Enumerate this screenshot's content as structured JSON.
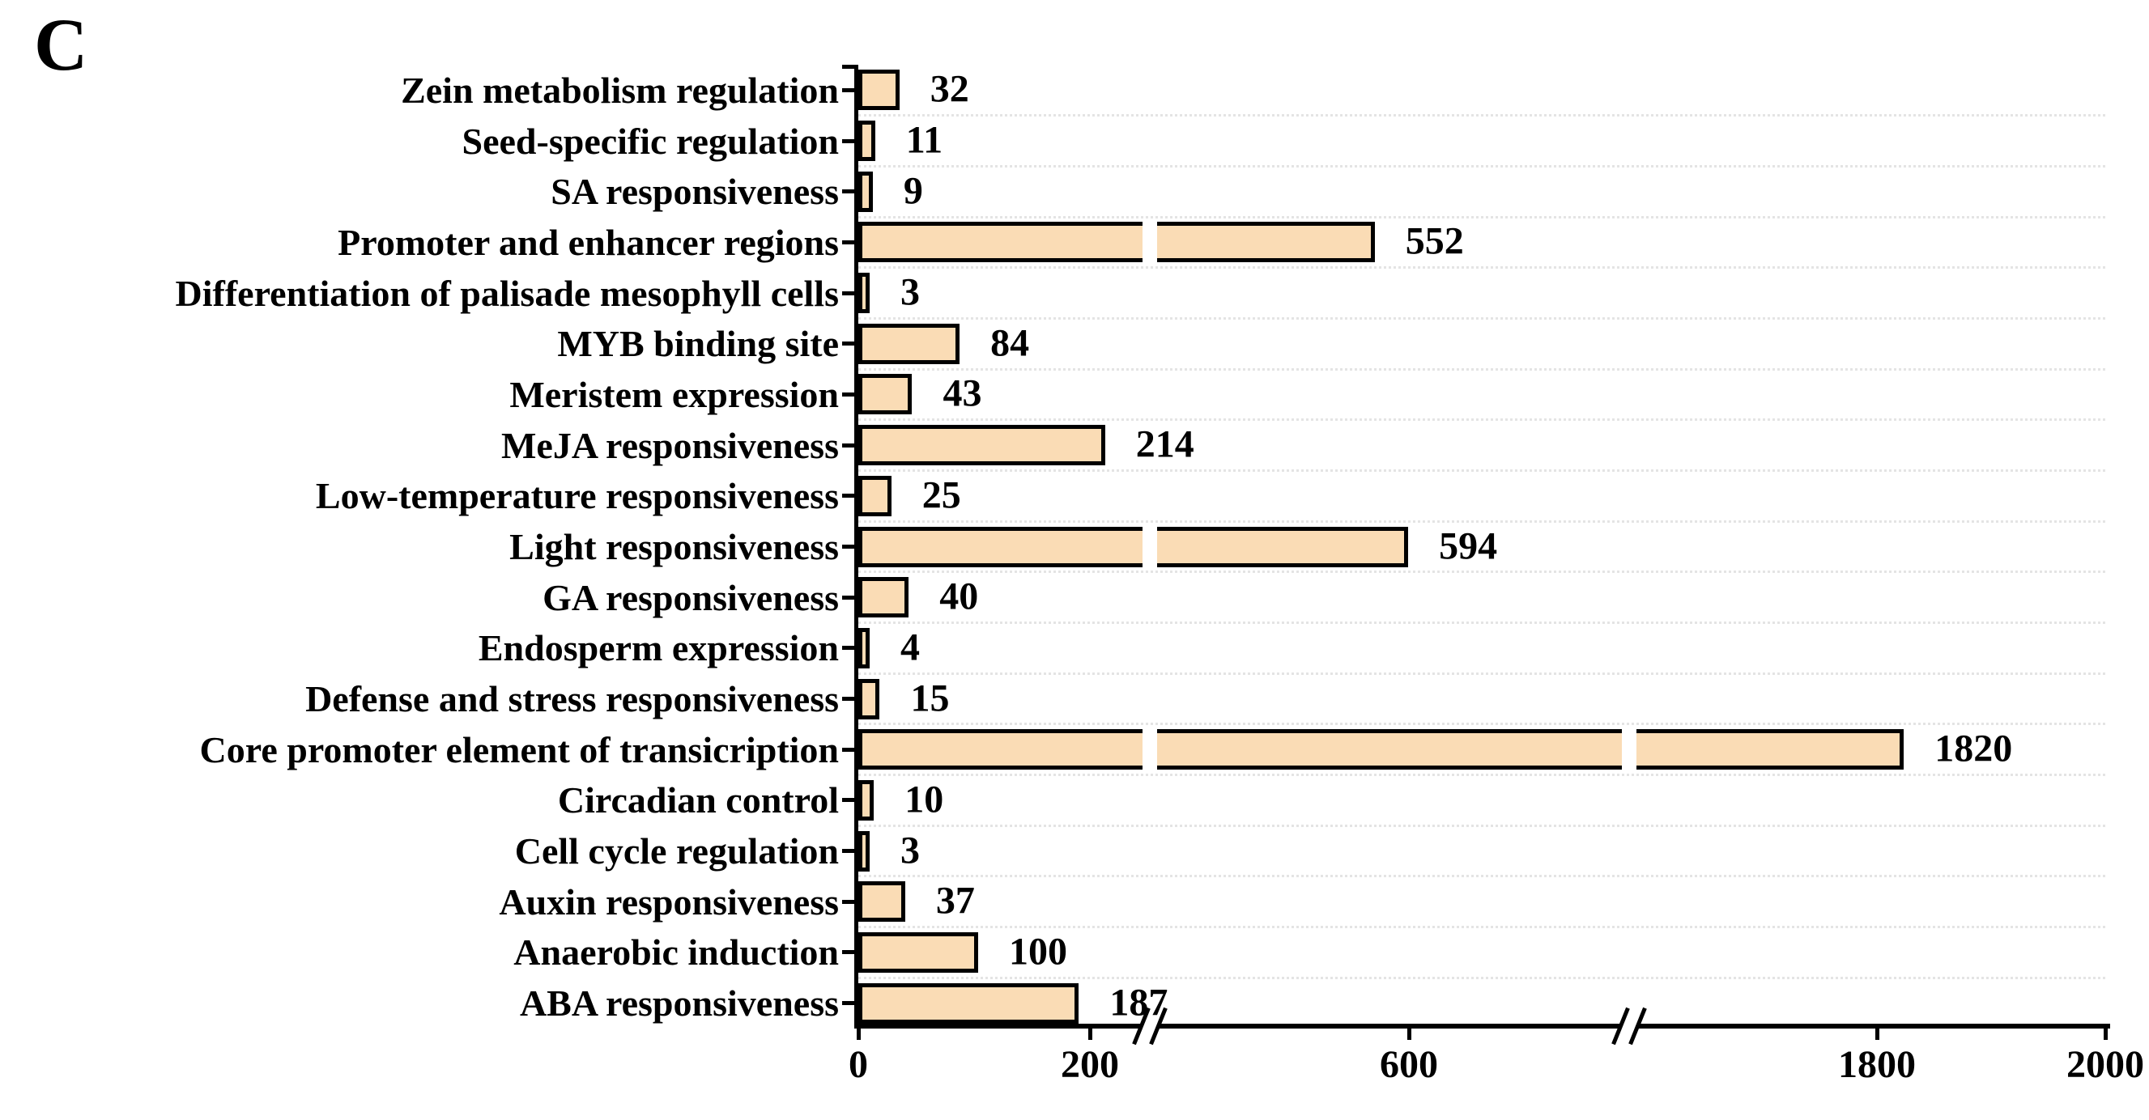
{
  "panel_label": "C",
  "chart_data": {
    "type": "bar",
    "orientation": "horizontal",
    "title": "",
    "xlabel": "",
    "ylabel": "",
    "categories": [
      "Zein metabolism regulation",
      "Seed-specific regulation",
      "SA responsiveness",
      "Promoter and enhancer regions",
      "Differentiation of palisade mesophyll cells",
      "MYB binding site",
      "Meristem expression",
      "MeJA responsiveness",
      "Low-temperature responsiveness",
      "Light responsiveness",
      "GA responsiveness",
      "Endosperm expression",
      "Defense and stress responsiveness",
      "Core promoter element of transicription",
      "Circadian control",
      "Cell cycle regulation",
      "Auxin responsiveness",
      "Anaerobic induction",
      "ABA responsiveness"
    ],
    "values": [
      32,
      11,
      9,
      552,
      3,
      84,
      43,
      214,
      25,
      594,
      40,
      4,
      15,
      1820,
      10,
      3,
      37,
      100,
      187
    ],
    "x_ticks": [
      0,
      200,
      600,
      1800,
      2000
    ],
    "xlim": [
      0,
      2000
    ],
    "axis_breaks": [
      {
        "between": [
          200,
          600
        ]
      },
      {
        "between": [
          600,
          1800
        ]
      }
    ],
    "grid": "horizontal-dotted",
    "legend": "none",
    "colors": {
      "bar_fill": "#fadcb5",
      "bar_border": "#000000",
      "axis": "#000000",
      "text": "#000000",
      "gridline": "#e4e4e4",
      "background": "#ffffff"
    }
  }
}
